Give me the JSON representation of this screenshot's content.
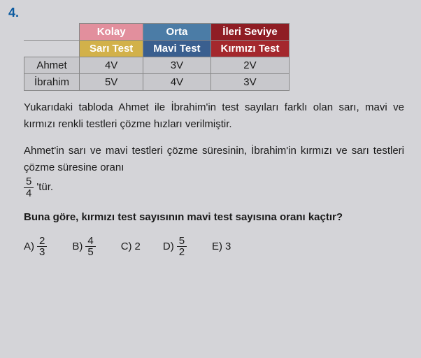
{
  "question_number": "4.",
  "table": {
    "headers": {
      "kolay": "Kolay",
      "orta": "Orta",
      "ileri": "İleri Seviye",
      "sari": "Sarı Test",
      "mavi": "Mavi Test",
      "kirmizi": "Kırmızı Test"
    },
    "rows": {
      "ahmet": {
        "name": "Ahmet",
        "v1": "4V",
        "v2": "3V",
        "v3": "2V"
      },
      "ibrahim": {
        "name": "İbrahim",
        "v1": "5V",
        "v2": "4V",
        "v3": "3V"
      }
    },
    "colors": {
      "kolay_bg": "#e28f9d",
      "orta_bg": "#4b7ca6",
      "ileri_bg": "#8f1d24",
      "sari_bg": "#d2b14a",
      "mavi_bg": "#3a5f8f",
      "kirmizi_bg": "#a4282d",
      "cell_bg": "#c8c8cc"
    }
  },
  "paragraphs": {
    "p1": "Yukarıdaki tabloda Ahmet ile İbrahim'in test sayıları farklı olan sarı, mavi ve kırmızı renkli testleri çözme hızları verilmiştir.",
    "p2": "Ahmet'in sarı ve mavi testleri çözme süresinin, İbrahim'in kırmızı ve sarı testleri çözme süresine oranı",
    "frac_top": "5",
    "frac_bot": "4",
    "p2_suffix": "'tür.",
    "p3": "Buna göre, kırmızı test sayısının mavi test sayısına oranı kaçtır?"
  },
  "options": {
    "a_label": "A)",
    "a_top": "2",
    "a_bot": "3",
    "b_label": "B)",
    "b_top": "4",
    "b_bot": "5",
    "c_label": "C)",
    "c_val": "2",
    "d_label": "D)",
    "d_top": "5",
    "d_bot": "2",
    "e_label": "E)",
    "e_val": "3"
  }
}
